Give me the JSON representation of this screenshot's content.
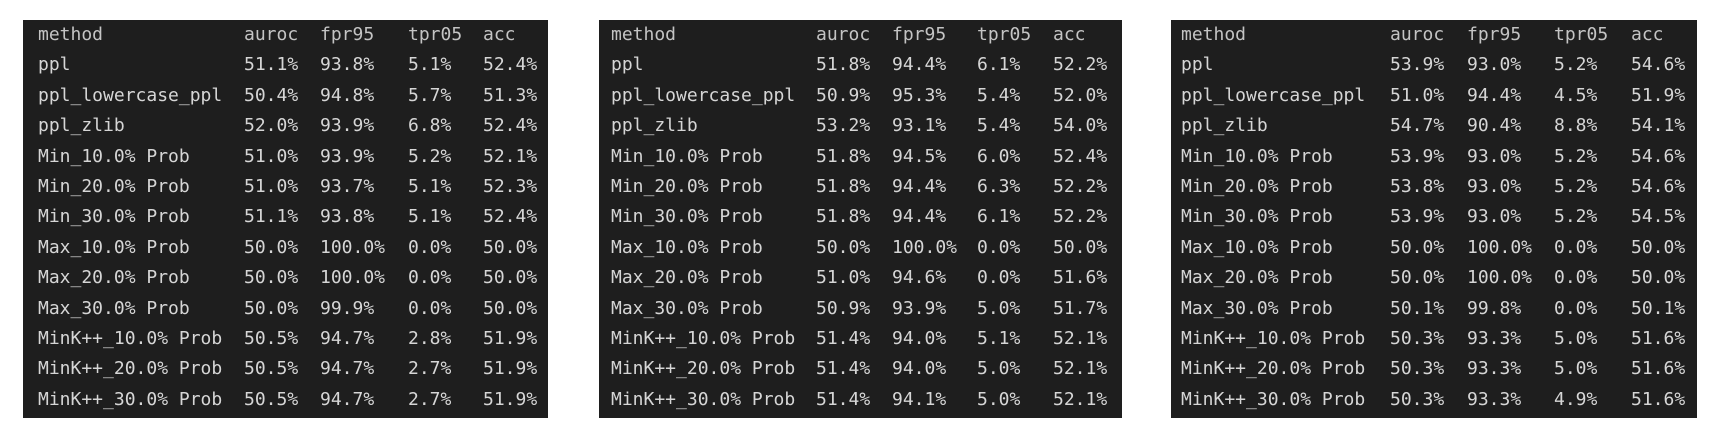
{
  "tables": [
    {
      "header": [
        "method",
        "auroc",
        "fpr95",
        "tpr05",
        "acc"
      ],
      "rows": [
        [
          "ppl",
          "51.1%",
          "93.8%",
          "5.1%",
          "52.4%"
        ],
        [
          "ppl_lowercase_ppl",
          "50.4%",
          "94.8%",
          "5.7%",
          "51.3%"
        ],
        [
          "ppl_zlib",
          "52.0%",
          "93.9%",
          "6.8%",
          "52.4%"
        ],
        [
          "Min_10.0% Prob",
          "51.0%",
          "93.9%",
          "5.2%",
          "52.1%"
        ],
        [
          "Min_20.0% Prob",
          "51.0%",
          "93.7%",
          "5.1%",
          "52.3%"
        ],
        [
          "Min_30.0% Prob",
          "51.1%",
          "93.8%",
          "5.1%",
          "52.4%"
        ],
        [
          "Max_10.0% Prob",
          "50.0%",
          "100.0%",
          "0.0%",
          "50.0%"
        ],
        [
          "Max_20.0% Prob",
          "50.0%",
          "100.0%",
          "0.0%",
          "50.0%"
        ],
        [
          "Max_30.0% Prob",
          "50.0%",
          "99.9%",
          "0.0%",
          "50.0%"
        ],
        [
          "MinK++_10.0% Prob",
          "50.5%",
          "94.7%",
          "2.8%",
          "51.9%"
        ],
        [
          "MinK++_20.0% Prob",
          "50.5%",
          "94.7%",
          "2.7%",
          "51.9%"
        ],
        [
          "MinK++_30.0% Prob",
          "50.5%",
          "94.7%",
          "2.7%",
          "51.9%"
        ]
      ]
    },
    {
      "header": [
        "method",
        "auroc",
        "fpr95",
        "tpr05",
        "acc"
      ],
      "rows": [
        [
          "ppl",
          "51.8%",
          "94.4%",
          "6.1%",
          "52.2%"
        ],
        [
          "ppl_lowercase_ppl",
          "50.9%",
          "95.3%",
          "5.4%",
          "52.0%"
        ],
        [
          "ppl_zlib",
          "53.2%",
          "93.1%",
          "5.4%",
          "54.0%"
        ],
        [
          "Min_10.0% Prob",
          "51.8%",
          "94.5%",
          "6.0%",
          "52.4%"
        ],
        [
          "Min_20.0% Prob",
          "51.8%",
          "94.4%",
          "6.3%",
          "52.2%"
        ],
        [
          "Min_30.0% Prob",
          "51.8%",
          "94.4%",
          "6.1%",
          "52.2%"
        ],
        [
          "Max_10.0% Prob",
          "50.0%",
          "100.0%",
          "0.0%",
          "50.0%"
        ],
        [
          "Max_20.0% Prob",
          "51.0%",
          "94.6%",
          "0.0%",
          "51.6%"
        ],
        [
          "Max_30.0% Prob",
          "50.9%",
          "93.9%",
          "5.0%",
          "51.7%"
        ],
        [
          "MinK++_10.0% Prob",
          "51.4%",
          "94.0%",
          "5.1%",
          "52.1%"
        ],
        [
          "MinK++_20.0% Prob",
          "51.4%",
          "94.0%",
          "5.0%",
          "52.1%"
        ],
        [
          "MinK++_30.0% Prob",
          "51.4%",
          "94.1%",
          "5.0%",
          "52.1%"
        ]
      ]
    },
    {
      "header": [
        "method",
        "auroc",
        "fpr95",
        "tpr05",
        "acc"
      ],
      "rows": [
        [
          "ppl",
          "53.9%",
          "93.0%",
          "5.2%",
          "54.6%"
        ],
        [
          "ppl_lowercase_ppl",
          "51.0%",
          "94.4%",
          "4.5%",
          "51.9%"
        ],
        [
          "ppl_zlib",
          "54.7%",
          "90.4%",
          "8.8%",
          "54.1%"
        ],
        [
          "Min_10.0% Prob",
          "53.9%",
          "93.0%",
          "5.2%",
          "54.6%"
        ],
        [
          "Min_20.0% Prob",
          "53.8%",
          "93.0%",
          "5.2%",
          "54.6%"
        ],
        [
          "Min_30.0% Prob",
          "53.9%",
          "93.0%",
          "5.2%",
          "54.5%"
        ],
        [
          "Max_10.0% Prob",
          "50.0%",
          "100.0%",
          "0.0%",
          "50.0%"
        ],
        [
          "Max_20.0% Prob",
          "50.0%",
          "100.0%",
          "0.0%",
          "50.0%"
        ],
        [
          "Max_30.0% Prob",
          "50.1%",
          "99.8%",
          "0.0%",
          "50.1%"
        ],
        [
          "MinK++_10.0% Prob",
          "50.3%",
          "93.3%",
          "5.0%",
          "51.6%"
        ],
        [
          "MinK++_20.0% Prob",
          "50.3%",
          "93.3%",
          "5.0%",
          "51.6%"
        ],
        [
          "MinK++_30.0% Prob",
          "50.3%",
          "93.3%",
          "4.9%",
          "51.6%"
        ]
      ]
    }
  ]
}
